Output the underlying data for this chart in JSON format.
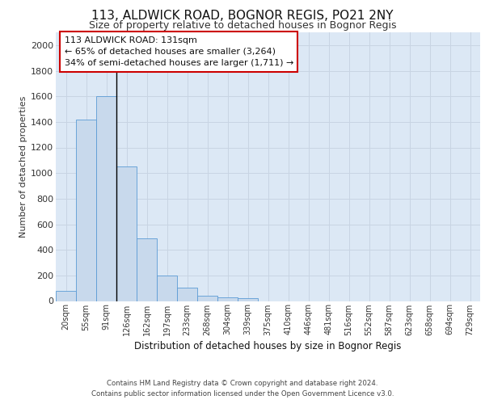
{
  "title_line1": "113, ALDWICK ROAD, BOGNOR REGIS, PO21 2NY",
  "title_line2": "Size of property relative to detached houses in Bognor Regis",
  "xlabel": "Distribution of detached houses by size in Bognor Regis",
  "ylabel": "Number of detached properties",
  "bin_labels": [
    "20sqm",
    "55sqm",
    "91sqm",
    "126sqm",
    "162sqm",
    "197sqm",
    "233sqm",
    "268sqm",
    "304sqm",
    "339sqm",
    "375sqm",
    "410sqm",
    "446sqm",
    "481sqm",
    "516sqm",
    "552sqm",
    "587sqm",
    "623sqm",
    "658sqm",
    "694sqm",
    "729sqm"
  ],
  "bar_heights": [
    80,
    1420,
    1600,
    1050,
    490,
    200,
    105,
    40,
    28,
    20,
    0,
    0,
    0,
    0,
    0,
    0,
    0,
    0,
    0,
    0,
    0
  ],
  "annotation_text": "113 ALDWICK ROAD: 131sqm\n← 65% of detached houses are smaller (3,264)\n34% of semi-detached houses are larger (1,711) →",
  "bar_color": "#c8d9ec",
  "bar_edge_color": "#5b9bd5",
  "highlight_line_color": "#000000",
  "annotation_box_color": "#ffffff",
  "annotation_box_edge": "#cc0000",
  "grid_color": "#c8d4e3",
  "bg_color": "#dce8f5",
  "footer_text": "Contains HM Land Registry data © Crown copyright and database right 2024.\nContains public sector information licensed under the Open Government Licence v3.0.",
  "ylim": [
    0,
    2100
  ],
  "yticks": [
    0,
    200,
    400,
    600,
    800,
    1000,
    1200,
    1400,
    1600,
    1800,
    2000
  ]
}
